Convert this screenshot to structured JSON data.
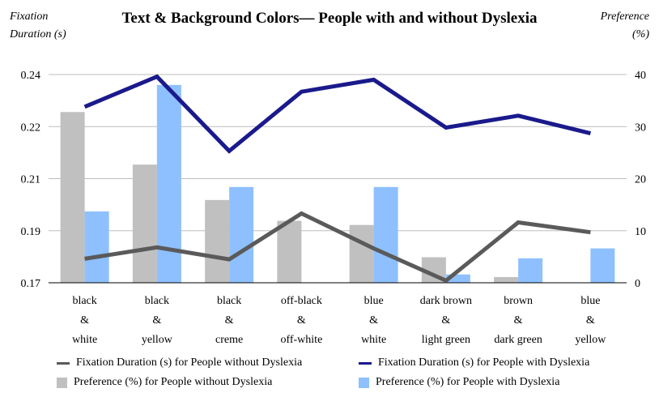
{
  "chart_data": {
    "type": "bar+line",
    "title": "Text & Background Colors— People with and without Dyslexia",
    "y_left_label_lines": [
      "Fixation",
      "Duration (s)"
    ],
    "y_right_label_lines": [
      "Preference",
      "(%)"
    ],
    "categories": [
      [
        "black",
        "&",
        "white"
      ],
      [
        "black",
        "&",
        "yellow"
      ],
      [
        "black",
        "&",
        "creme"
      ],
      [
        "off-black",
        "&",
        "off-white"
      ],
      [
        "blue",
        "&",
        "white"
      ],
      [
        "dark brown",
        "&",
        "light green"
      ],
      [
        "brown",
        "&",
        "dark green"
      ],
      [
        "blue",
        "&",
        "yellow"
      ]
    ],
    "y_left": {
      "ticks": [
        "0.17",
        "0.19",
        "0.21",
        "0.22",
        "0.24"
      ],
      "tick_positions": [
        0,
        10,
        20,
        30,
        40
      ]
    },
    "y_right": {
      "ticks": [
        "0",
        "10",
        "20",
        "30",
        "40"
      ],
      "range": [
        0,
        40
      ]
    },
    "series": [
      {
        "name": "Fixation Duration (s) for People without Dyslexia",
        "kind": "line",
        "axis": "left",
        "color": "#5a5a5a",
        "values": [
          4.6,
          6.8,
          4.5,
          13.3,
          6.6,
          0.4,
          11.6,
          9.7
        ]
      },
      {
        "name": "Fixation Duration (s) for People with Dyslexia",
        "kind": "line",
        "axis": "left",
        "color": "#1a1a8c",
        "values": [
          33.8,
          39.6,
          25.3,
          36.7,
          39.0,
          29.8,
          32.1,
          28.7
        ]
      },
      {
        "name": "Preference (%) for People without Dyslexia",
        "kind": "bar",
        "axis": "right",
        "color": "#c0c0c0",
        "values": [
          32.8,
          22.7,
          15.9,
          11.9,
          11.1,
          4.9,
          1.1,
          0
        ]
      },
      {
        "name": "Preference (%) for People with Dyslexia",
        "kind": "bar",
        "axis": "right",
        "color": "#8ec0ff",
        "values": [
          13.7,
          38.0,
          18.4,
          0,
          18.4,
          1.6,
          4.7,
          6.6
        ]
      }
    ],
    "legend_placement": "bottom",
    "grid": true
  }
}
